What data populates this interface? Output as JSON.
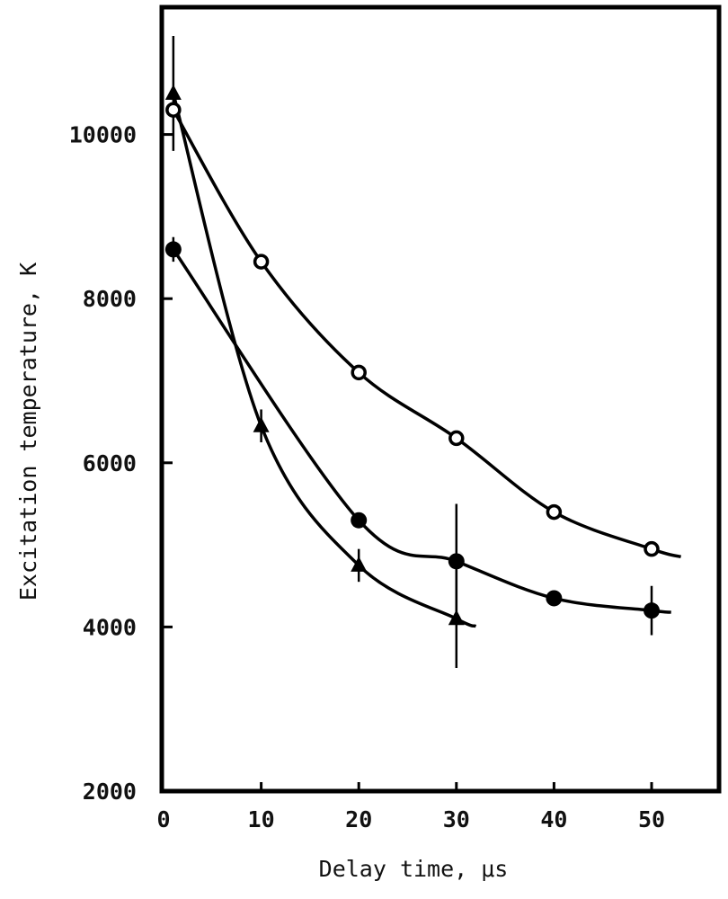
{
  "chart_data": {
    "type": "line",
    "title": "",
    "xlabel": "Delay time, μs",
    "ylabel": "Excitation temperature, K",
    "xlim": [
      0,
      55
    ],
    "ylim": [
      2000,
      11800
    ],
    "xticks": [
      0,
      10,
      20,
      30,
      40,
      50
    ],
    "yticks": [
      2000,
      4000,
      6000,
      8000,
      10000
    ],
    "grid": false,
    "legend": null,
    "series": [
      {
        "name": "open circles",
        "marker": "open-circle",
        "x": [
          1,
          10,
          20,
          30,
          40,
          50
        ],
        "y": [
          10300,
          8450,
          7100,
          6300,
          5400,
          4950
        ],
        "fit_curve_end_x": 53
      },
      {
        "name": "filled circles",
        "marker": "filled-circle",
        "x": [
          1,
          20,
          30,
          40,
          50
        ],
        "y": [
          8600,
          5300,
          4800,
          4350,
          4200
        ],
        "error_bars": [
          [
            1,
            8600,
            150
          ],
          [
            30,
            4800,
            700
          ],
          [
            50,
            4200,
            300
          ]
        ],
        "fit_curve_end_x": 52
      },
      {
        "name": "filled triangles",
        "marker": "filled-triangle",
        "x": [
          1,
          10,
          20,
          30
        ],
        "y": [
          10500,
          6450,
          4750,
          4100
        ],
        "error_bars": [
          [
            1,
            10500,
            700
          ],
          [
            10,
            6450,
            200
          ],
          [
            20,
            4750,
            200
          ],
          [
            30,
            4100,
            600
          ]
        ],
        "fit_curve_end_x": 32
      }
    ]
  }
}
